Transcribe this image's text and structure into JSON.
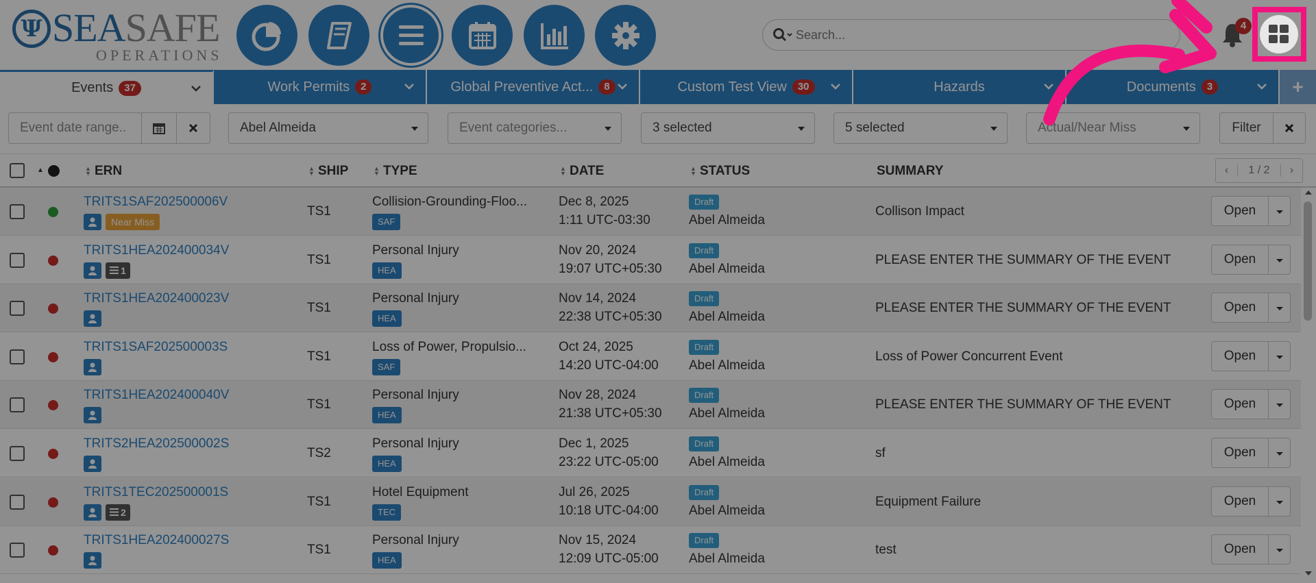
{
  "brand": {
    "sea": "SEA",
    "safe": "SAFE",
    "ops": "OPERATIONS"
  },
  "nav_icons": [
    "pie-chart-icon",
    "book-icon",
    "menu-icon",
    "calendar-icon",
    "bar-chart-icon",
    "gear-icon"
  ],
  "search": {
    "placeholder": "Search..."
  },
  "notifications": {
    "count": "4"
  },
  "tabs": [
    {
      "label": "Events",
      "badge": "37"
    },
    {
      "label": "Work Permits",
      "badge": "2"
    },
    {
      "label": "Global Preventive Act...",
      "badge": "8"
    },
    {
      "label": "Custom Test View",
      "badge": "30"
    },
    {
      "label": "Hazards",
      "badge": ""
    },
    {
      "label": "Documents",
      "badge": "3"
    }
  ],
  "add_tab": "+",
  "filters": {
    "date_range_placeholder": "Event date range..",
    "person": "Abel Almeida",
    "categories_placeholder": "Event categories...",
    "select_a": "3 selected",
    "select_b": "5 selected",
    "actual_near_miss": "Actual/Near Miss",
    "filter_label": "Filter"
  },
  "columns": {
    "ern": "ERN",
    "ship": "SHIP",
    "type": "TYPE",
    "date": "DATE",
    "status": "STATUS",
    "summary": "SUMMARY"
  },
  "pager": {
    "prev": "‹",
    "pages": "1 / 2",
    "next": "›"
  },
  "open_label": "Open",
  "rows": [
    {
      "ern": "TRITS1SAF202500006V",
      "dot": "#2e9e3e",
      "tag": "Near Miss",
      "count": "",
      "ship": "TS1",
      "type": "Collision-Grounding-Floo...",
      "cat": "SAF",
      "date": "Dec 8, 2025",
      "time": "1:11 UTC-03:30",
      "status": "Draft",
      "who": "Abel Almeida",
      "summary": "Collison Impact"
    },
    {
      "ern": "TRITS1HEA202400034V",
      "dot": "#c9302c",
      "tag": "",
      "count": "1",
      "ship": "TS1",
      "type": "Personal Injury",
      "cat": "HEA",
      "date": "Nov 20, 2024",
      "time": "19:07 UTC+05:30",
      "status": "Draft",
      "who": "Abel Almeida",
      "summary": "PLEASE ENTER THE SUMMARY OF THE EVENT"
    },
    {
      "ern": "TRITS1HEA202400023V",
      "dot": "#c9302c",
      "tag": "",
      "count": "",
      "ship": "TS1",
      "type": "Personal Injury",
      "cat": "HEA",
      "date": "Nov 14, 2024",
      "time": "22:38 UTC+05:30",
      "status": "Draft",
      "who": "Abel Almeida",
      "summary": "PLEASE ENTER THE SUMMARY OF THE EVENT"
    },
    {
      "ern": "TRITS1SAF202500003S",
      "dot": "#c9302c",
      "tag": "",
      "count": "",
      "ship": "TS1",
      "type": "Loss of Power, Propulsio...",
      "cat": "SAF",
      "date": "Oct 24, 2025",
      "time": "14:20 UTC-04:00",
      "status": "Draft",
      "who": "Abel Almeida",
      "summary": "Loss of Power Concurrent Event"
    },
    {
      "ern": "TRITS1HEA202400040V",
      "dot": "#c9302c",
      "tag": "",
      "count": "",
      "ship": "TS1",
      "type": "Personal Injury",
      "cat": "HEA",
      "date": "Nov 28, 2024",
      "time": "21:38 UTC+05:30",
      "status": "Draft",
      "who": "Abel Almeida",
      "summary": "PLEASE ENTER THE SUMMARY OF THE EVENT"
    },
    {
      "ern": "TRITS2HEA202500002S",
      "dot": "#c9302c",
      "tag": "",
      "count": "",
      "ship": "TS2",
      "type": "Personal Injury",
      "cat": "HEA",
      "date": "Dec 1, 2025",
      "time": "23:22 UTC-05:00",
      "status": "Draft",
      "who": "Abel Almeida",
      "summary": "sf"
    },
    {
      "ern": "TRITS1TEC202500001S",
      "dot": "#c9302c",
      "tag": "",
      "count": "2",
      "ship": "TS1",
      "type": "Hotel Equipment",
      "cat": "TEC",
      "date": "Jul 26, 2025",
      "time": "10:18 UTC-04:00",
      "status": "Draft",
      "who": "Abel Almeida",
      "summary": "Equipment Failure"
    },
    {
      "ern": "TRITS1HEA202400027S",
      "dot": "#c9302c",
      "tag": "",
      "count": "",
      "ship": "TS1",
      "type": "Personal Injury",
      "cat": "HEA",
      "date": "Nov 15, 2024",
      "time": "12:09 UTC-05:00",
      "status": "Draft",
      "who": "Abel Almeida",
      "summary": "test"
    }
  ],
  "colors": {
    "primary": "#2f80c2",
    "highlight": "#f0147e",
    "danger": "#c9302c",
    "success": "#2e9e3e"
  }
}
